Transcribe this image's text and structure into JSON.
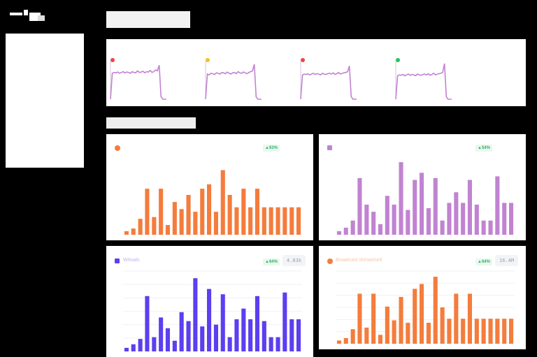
{
  "logo_icon": "brand-logo-icon",
  "top_sparklines": [
    {
      "status_color": "#ef4444",
      "status_text": "",
      "line_color": "#c183d1",
      "series": [
        0,
        64,
        66,
        65,
        67,
        64,
        66,
        68,
        65,
        67,
        66,
        64,
        68,
        66,
        65,
        70,
        66,
        67,
        69,
        65,
        68,
        67,
        71,
        66,
        68,
        72,
        70,
        84,
        6,
        0,
        0,
        0
      ]
    },
    {
      "status_color": "#fbbf24",
      "status_text": "",
      "line_color": "#c183d1",
      "series": [
        0,
        62,
        60,
        64,
        63,
        61,
        65,
        64,
        62,
        66,
        65,
        63,
        67,
        64,
        62,
        65,
        66,
        63,
        68,
        65,
        64,
        67,
        65,
        63,
        66,
        68,
        70,
        86,
        6,
        0,
        0,
        0
      ]
    },
    {
      "status_color": "#ef4444",
      "status_text": "",
      "line_color": "#c183d1",
      "series": [
        0,
        60,
        62,
        61,
        63,
        60,
        62,
        64,
        61,
        63,
        62,
        60,
        64,
        62,
        61,
        63,
        64,
        62,
        65,
        61,
        63,
        66,
        62,
        64,
        65,
        66,
        68,
        82,
        6,
        0,
        0,
        0
      ]
    },
    {
      "status_color": "#22c55e",
      "status_text": "",
      "line_color": "#c183d1",
      "series": [
        0,
        58,
        60,
        59,
        61,
        58,
        60,
        62,
        59,
        61,
        60,
        58,
        62,
        60,
        59,
        61,
        62,
        60,
        63,
        59,
        61,
        64,
        60,
        62,
        63,
        64,
        66,
        88,
        6,
        0,
        0,
        0
      ]
    }
  ],
  "cards": [
    {
      "name": "card-orange-top",
      "color": "#f47c3c",
      "icon": "orange-circle-icon",
      "label": "",
      "delta": "▲63%",
      "value": "",
      "chart_data": {
        "type": "bar",
        "values": [
          4,
          7,
          18,
          52,
          20,
          52,
          11,
          37,
          29,
          45,
          26,
          52,
          57,
          26,
          73,
          45,
          31,
          52,
          31,
          52,
          31,
          31,
          31,
          31,
          31,
          31
        ]
      }
    },
    {
      "name": "card-purple-top",
      "color": "#c183d1",
      "icon": "purple-square-icon",
      "label": "",
      "delta": "▲54%",
      "value": "",
      "chart_data": {
        "type": "bar",
        "values": [
          4,
          8,
          16,
          64,
          34,
          26,
          12,
          44,
          34,
          82,
          28,
          62,
          70,
          30,
          64,
          16,
          36,
          48,
          36,
          62,
          34,
          16,
          16,
          66,
          36,
          36
        ]
      }
    },
    {
      "name": "card-indigo-bottom",
      "color": "#5b3ff0",
      "icon": "indigo-db-icon",
      "label": "Wrtuals",
      "delta": "▲64%",
      "value": "4.83k",
      "chart_data": {
        "type": "bar",
        "values": [
          4,
          8,
          14,
          62,
          16,
          38,
          26,
          12,
          44,
          34,
          82,
          28,
          70,
          30,
          64,
          16,
          36,
          48,
          36,
          62,
          34,
          16,
          16,
          66,
          36,
          36
        ]
      }
    },
    {
      "name": "card-orange-bottom",
      "color": "#f47c3c",
      "icon": "orange-target-icon",
      "label": "Broadcast shmarmed",
      "delta": "▲64%",
      "value": "16.4M",
      "chart_data": {
        "type": "bar",
        "values": [
          4,
          7,
          18,
          62,
          20,
          62,
          11,
          46,
          29,
          58,
          26,
          68,
          74,
          26,
          83,
          45,
          31,
          62,
          31,
          62,
          31,
          31,
          31,
          31,
          31,
          31
        ]
      }
    }
  ]
}
